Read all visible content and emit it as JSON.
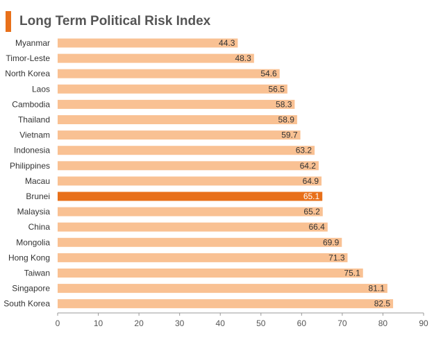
{
  "chart_data": {
    "type": "bar",
    "orientation": "horizontal",
    "title": "Long Term Political Risk Index",
    "categories": [
      "Myanmar",
      "Timor-Leste",
      "North Korea",
      "Laos",
      "Cambodia",
      "Thailand",
      "Vietnam",
      "Indonesia",
      "Philippines",
      "Macau",
      "Brunei",
      "Malaysia",
      "China",
      "Mongolia",
      "Hong Kong",
      "Taiwan",
      "Singapore",
      "South Korea"
    ],
    "values": [
      44.3,
      48.3,
      54.6,
      56.5,
      58.3,
      58.9,
      59.7,
      63.2,
      64.2,
      64.9,
      65.1,
      65.2,
      66.4,
      69.9,
      71.3,
      75.1,
      81.1,
      82.5
    ],
    "value_labels": [
      "44.3",
      "48.3",
      "54.6",
      "56.5",
      "58.3",
      "58.9",
      "59.7",
      "63.2",
      "64.2",
      "64.9",
      "65.1",
      "65.2",
      "66.4",
      "69.9",
      "71.3",
      "75.1",
      "81.1",
      "82.5"
    ],
    "highlight": "Brunei",
    "xlim": [
      0,
      90
    ],
    "xticks": [
      0,
      10,
      20,
      30,
      40,
      50,
      60,
      70,
      80,
      90
    ],
    "xlabel": "",
    "ylabel": "",
    "grid": false,
    "legend": "none",
    "colors": {
      "bar": "#f9c193",
      "highlight_bar": "#e8701a",
      "accent": "#e8701a",
      "label_text": "#333333",
      "highlight_label_text": "#ffffff",
      "axis": "#999999",
      "tick_text": "#555555",
      "title_text": "#555555"
    }
  }
}
